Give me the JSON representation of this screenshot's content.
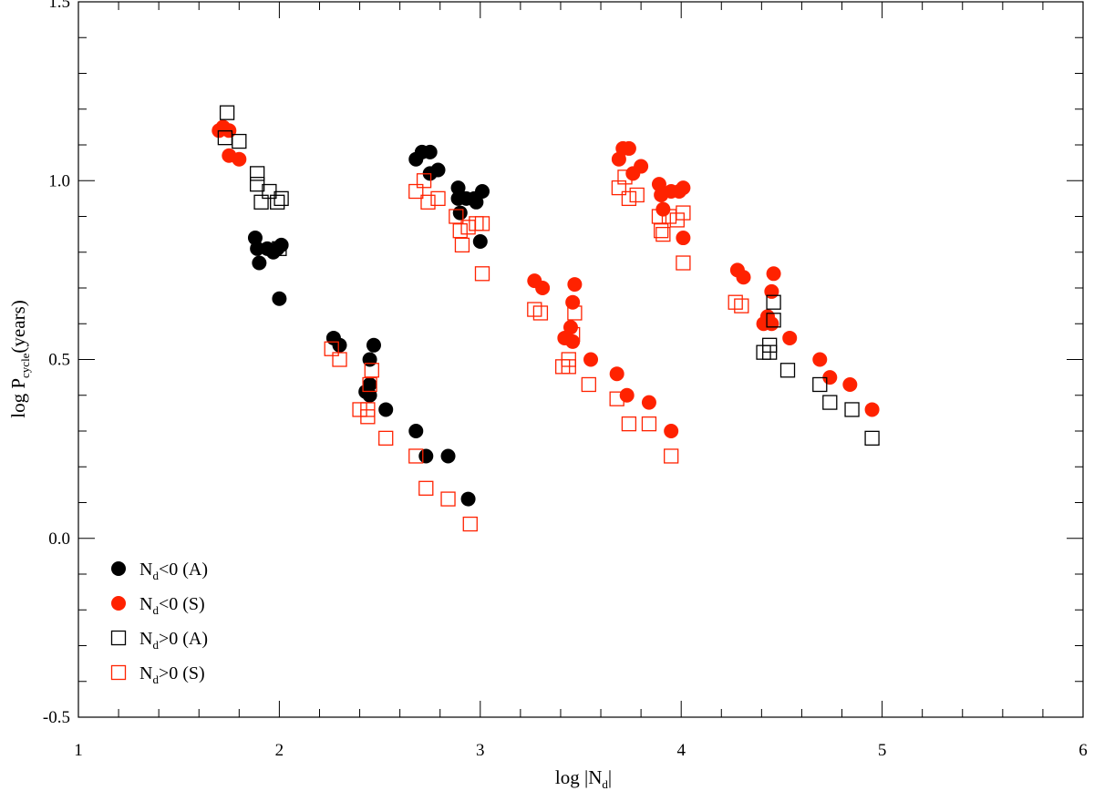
{
  "chart_data": {
    "type": "scatter",
    "xlabel": {
      "base": "log |N",
      "sub": "d",
      "tail": "|"
    },
    "ylabel": {
      "base": "log P",
      "sub": "cycle",
      "tail": "(years)"
    },
    "xlim": [
      1,
      6
    ],
    "ylim": [
      -0.5,
      1.5
    ],
    "xticks": [
      1,
      2,
      3,
      4,
      5,
      6
    ],
    "xtick_labels": [
      "1",
      "2",
      "3",
      "4",
      "5",
      "6"
    ],
    "yticks": [
      -0.5,
      0.0,
      0.5,
      1.0,
      1.5
    ],
    "ytick_labels": [
      "-0.5",
      "0.0",
      "0.5",
      "1.0",
      "1.5"
    ],
    "legend_position": "bottom-left",
    "series": [
      {
        "name": "Nd<0 (A)",
        "legend": {
          "base": "N",
          "sub": "d",
          "tail": "<0 (A)"
        },
        "marker": "circle-filled",
        "color": "#000000",
        "points": [
          [
            1.88,
            0.84
          ],
          [
            1.89,
            0.81
          ],
          [
            1.9,
            0.77
          ],
          [
            1.94,
            0.81
          ],
          [
            1.97,
            0.8
          ],
          [
            1.99,
            0.81
          ],
          [
            2.01,
            0.82
          ],
          [
            2.0,
            0.67
          ],
          [
            2.27,
            0.56
          ],
          [
            2.3,
            0.54
          ],
          [
            2.43,
            0.41
          ],
          [
            2.45,
            0.4
          ],
          [
            2.45,
            0.43
          ],
          [
            2.45,
            0.5
          ],
          [
            2.47,
            0.54
          ],
          [
            2.53,
            0.36
          ],
          [
            2.68,
            0.3
          ],
          [
            2.73,
            0.23
          ],
          [
            2.84,
            0.23
          ],
          [
            2.94,
            0.11
          ],
          [
            2.68,
            1.06
          ],
          [
            2.71,
            1.08
          ],
          [
            2.75,
            1.08
          ],
          [
            2.75,
            1.02
          ],
          [
            2.79,
            1.03
          ],
          [
            2.89,
            0.98
          ],
          [
            2.89,
            0.95
          ],
          [
            2.9,
            0.91
          ],
          [
            2.93,
            0.95
          ],
          [
            2.97,
            0.95
          ],
          [
            2.98,
            0.94
          ],
          [
            3.01,
            0.97
          ],
          [
            3.0,
            0.83
          ]
        ]
      },
      {
        "name": "Nd<0 (S)",
        "legend": {
          "base": "N",
          "sub": "d",
          "tail": "<0 (S)"
        },
        "marker": "circle-filled",
        "color": "#ff2200",
        "points": [
          [
            1.7,
            1.14
          ],
          [
            1.72,
            1.15
          ],
          [
            1.75,
            1.14
          ],
          [
            1.75,
            1.07
          ],
          [
            1.8,
            1.06
          ],
          [
            3.27,
            0.72
          ],
          [
            3.31,
            0.7
          ],
          [
            3.42,
            0.56
          ],
          [
            3.45,
            0.59
          ],
          [
            3.46,
            0.55
          ],
          [
            3.46,
            0.66
          ],
          [
            3.47,
            0.71
          ],
          [
            3.55,
            0.5
          ],
          [
            3.68,
            0.46
          ],
          [
            3.73,
            0.4
          ],
          [
            3.84,
            0.38
          ],
          [
            3.95,
            0.3
          ],
          [
            3.69,
            1.06
          ],
          [
            3.71,
            1.09
          ],
          [
            3.74,
            1.09
          ],
          [
            3.76,
            1.02
          ],
          [
            3.8,
            1.04
          ],
          [
            3.89,
            0.99
          ],
          [
            3.9,
            0.96
          ],
          [
            3.91,
            0.92
          ],
          [
            3.95,
            0.97
          ],
          [
            3.99,
            0.97
          ],
          [
            4.01,
            0.98
          ],
          [
            4.01,
            0.84
          ],
          [
            4.28,
            0.75
          ],
          [
            4.31,
            0.73
          ],
          [
            4.41,
            0.6
          ],
          [
            4.43,
            0.62
          ],
          [
            4.45,
            0.6
          ],
          [
            4.45,
            0.69
          ],
          [
            4.46,
            0.74
          ],
          [
            4.54,
            0.56
          ],
          [
            4.69,
            0.5
          ],
          [
            4.74,
            0.45
          ],
          [
            4.84,
            0.43
          ],
          [
            4.95,
            0.36
          ]
        ]
      },
      {
        "name": "Nd>0 (A)",
        "legend": {
          "base": "N",
          "sub": "d",
          "tail": ">0 (A)"
        },
        "marker": "square-open",
        "color": "#000000",
        "points": [
          [
            1.74,
            1.19
          ],
          [
            1.73,
            1.12
          ],
          [
            1.8,
            1.11
          ],
          [
            1.89,
            1.02
          ],
          [
            1.89,
            0.99
          ],
          [
            1.91,
            0.94
          ],
          [
            1.95,
            0.97
          ],
          [
            1.99,
            0.94
          ],
          [
            2.01,
            0.95
          ],
          [
            2.0,
            0.81
          ],
          [
            4.41,
            0.52
          ],
          [
            4.44,
            0.52
          ],
          [
            4.44,
            0.54
          ],
          [
            4.46,
            0.61
          ],
          [
            4.46,
            0.66
          ],
          [
            4.53,
            0.47
          ],
          [
            4.69,
            0.43
          ],
          [
            4.74,
            0.38
          ],
          [
            4.85,
            0.36
          ],
          [
            4.95,
            0.28
          ]
        ]
      },
      {
        "name": "Nd>0 (S)",
        "legend": {
          "base": "N",
          "sub": "d",
          "tail": ">0 (S)"
        },
        "marker": "square-open",
        "color": "#ff2200",
        "points": [
          [
            2.26,
            0.53
          ],
          [
            2.3,
            0.5
          ],
          [
            2.4,
            0.36
          ],
          [
            2.44,
            0.34
          ],
          [
            2.44,
            0.36
          ],
          [
            2.45,
            0.43
          ],
          [
            2.46,
            0.47
          ],
          [
            2.53,
            0.28
          ],
          [
            2.68,
            0.23
          ],
          [
            2.73,
            0.14
          ],
          [
            2.84,
            0.11
          ],
          [
            2.95,
            0.04
          ],
          [
            2.68,
            0.97
          ],
          [
            2.72,
            1.0
          ],
          [
            2.74,
            0.94
          ],
          [
            2.79,
            0.95
          ],
          [
            2.88,
            0.9
          ],
          [
            2.9,
            0.86
          ],
          [
            2.91,
            0.82
          ],
          [
            2.94,
            0.87
          ],
          [
            2.98,
            0.88
          ],
          [
            3.01,
            0.88
          ],
          [
            3.01,
            0.74
          ],
          [
            3.27,
            0.64
          ],
          [
            3.3,
            0.63
          ],
          [
            3.41,
            0.48
          ],
          [
            3.44,
            0.48
          ],
          [
            3.44,
            0.5
          ],
          [
            3.46,
            0.57
          ],
          [
            3.47,
            0.63
          ],
          [
            3.54,
            0.43
          ],
          [
            3.68,
            0.39
          ],
          [
            3.74,
            0.32
          ],
          [
            3.84,
            0.32
          ],
          [
            3.95,
            0.23
          ],
          [
            3.69,
            0.98
          ],
          [
            3.72,
            1.01
          ],
          [
            3.74,
            0.95
          ],
          [
            3.78,
            0.96
          ],
          [
            3.89,
            0.9
          ],
          [
            3.9,
            0.86
          ],
          [
            3.91,
            0.85
          ],
          [
            3.94,
            0.9
          ],
          [
            3.98,
            0.89
          ],
          [
            4.01,
            0.91
          ],
          [
            4.01,
            0.77
          ],
          [
            4.27,
            0.66
          ],
          [
            4.3,
            0.65
          ]
        ]
      }
    ]
  }
}
